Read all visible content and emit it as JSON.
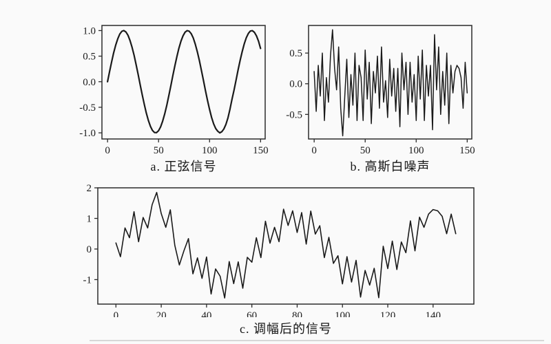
{
  "page": {
    "background": "#fafafa",
    "axis_color": "#2b2b2b",
    "line_color": "#1a1a1a",
    "divider_color": "#d7d7d7"
  },
  "figures": {
    "a": {
      "caption": "a. 正弦信号"
    },
    "b": {
      "caption": "b. 高斯白噪声"
    },
    "c": {
      "caption": "c. 调幅后的信号"
    }
  },
  "chart_data": [
    {
      "id": "a",
      "type": "line",
      "title": "a. 正弦信号",
      "xlabel": "",
      "ylabel": "",
      "grid": false,
      "legend": "none",
      "xlim": [
        -5.5,
        154.5
      ],
      "ylim": [
        -1.12,
        1.1
      ],
      "x_ticks": [
        0,
        50,
        100,
        150
      ],
      "x_tick_labels": [
        "0",
        "50",
        "100",
        "150"
      ],
      "y_ticks": [
        -1.0,
        -0.5,
        0.0,
        0.5,
        1.0
      ],
      "y_tick_labels": [
        "-1.0",
        "-0.5",
        "0.0",
        "0.5",
        "1.0"
      ],
      "axis_color": "#2b2b2b",
      "line_color": "#1a1a1a",
      "line_width": 2.2,
      "x": {
        "start": 0,
        "step": 2,
        "count": 76
      },
      "values": [
        0.0,
        0.199,
        0.389,
        0.565,
        0.717,
        0.841,
        0.932,
        0.985,
        1.0,
        0.974,
        0.909,
        0.808,
        0.675,
        0.516,
        0.335,
        0.141,
        -0.058,
        -0.256,
        -0.443,
        -0.612,
        -0.757,
        -0.872,
        -0.952,
        -0.994,
        -0.996,
        -0.959,
        -0.883,
        -0.773,
        -0.631,
        -0.465,
        -0.279,
        -0.083,
        0.117,
        0.312,
        0.494,
        0.657,
        0.794,
        0.899,
        0.968,
        0.999,
        0.989,
        0.94,
        0.855,
        0.735,
        0.585,
        0.412,
        0.223,
        0.025,
        -0.174,
        -0.366,
        -0.544,
        -0.699,
        -0.825,
        -0.916,
        -0.968,
        -1.0,
        -0.979,
        -0.925,
        -0.835,
        -0.711,
        -0.537,
        -0.34,
        -0.165,
        0.034,
        0.232,
        0.42,
        0.592,
        0.74,
        0.86,
        0.944,
        0.991,
        0.998,
        0.966,
        0.895,
        0.79,
        0.65
      ]
    },
    {
      "id": "b",
      "type": "line",
      "title": "b. 高斯白噪声",
      "xlabel": "",
      "ylabel": "",
      "grid": false,
      "legend": "none",
      "xlim": [
        -5.5,
        154.5
      ],
      "ylim": [
        -0.9,
        0.95
      ],
      "x_ticks": [
        0,
        50,
        100,
        150
      ],
      "x_tick_labels": [
        "0",
        "50",
        "100",
        "150"
      ],
      "y_ticks": [
        -0.5,
        0.0,
        0.5
      ],
      "y_tick_labels": [
        "-0.5",
        "0.0",
        "0.5"
      ],
      "axis_color": "#2b2b2b",
      "line_color": "#1a1a1a",
      "line_width": 1.5,
      "x": {
        "start": 0,
        "step": 2,
        "count": 76
      },
      "values": [
        0.2,
        -0.45,
        0.3,
        -0.2,
        0.5,
        -0.6,
        0.1,
        -0.3,
        0.45,
        0.88,
        0.25,
        -0.1,
        0.6,
        -0.4,
        -0.85,
        -0.2,
        0.4,
        -0.55,
        0.15,
        -0.35,
        0.5,
        -0.6,
        0.3,
        0.1,
        -0.6,
        0.55,
        -0.25,
        0.35,
        -0.65,
        0.2,
        -0.15,
        0.45,
        -0.4,
        0.6,
        -0.3,
        0.05,
        -0.55,
        0.4,
        -0.2,
        0.25,
        -0.45,
        0.25,
        -0.7,
        0.5,
        -0.1,
        0.35,
        -0.5,
        0.35,
        -0.3,
        0.15,
        -0.6,
        0.45,
        -0.25,
        0.55,
        -0.6,
        0.3,
        -0.2,
        0.3,
        -0.75,
        0.8,
        -0.1,
        0.6,
        -0.5,
        0.2,
        -0.35,
        0.5,
        -0.65,
        0.3,
        -0.15,
        0.2,
        0.3,
        0.25,
        0.1,
        -0.4,
        0.35,
        -0.15
      ]
    },
    {
      "id": "c",
      "type": "line",
      "title": "c. 调幅后的信号",
      "xlabel": "",
      "ylabel": "",
      "grid": false,
      "legend": "none",
      "xlim": [
        -8,
        158
      ],
      "ylim": [
        -1.8,
        2.0
      ],
      "x_ticks": [
        0,
        20,
        40,
        60,
        80,
        100,
        120,
        140
      ],
      "x_tick_labels": [
        "0",
        "20",
        "40",
        "60",
        "80",
        "100",
        "120",
        "140"
      ],
      "y_ticks": [
        -1,
        0,
        1,
        2
      ],
      "y_tick_labels": [
        "-1",
        "0",
        "1",
        "2"
      ],
      "axis_color": "#2b2b2b",
      "line_color": "#1a1a1a",
      "line_width": 1.6,
      "x": {
        "start": 0,
        "step": 2,
        "count": 76
      },
      "values": [
        0.2,
        -0.25,
        0.69,
        0.37,
        1.22,
        0.24,
        1.03,
        0.69,
        1.45,
        1.85,
        1.16,
        0.71,
        1.28,
        0.12,
        -0.52,
        -0.06,
        0.34,
        -0.81,
        -0.29,
        -0.96,
        -0.26,
        -1.47,
        -0.65,
        -0.89,
        -1.6,
        -0.41,
        -1.13,
        -0.42,
        -1.28,
        -0.27,
        -0.43,
        0.37,
        -0.28,
        0.91,
        0.19,
        0.71,
        0.24,
        1.3,
        0.77,
        1.25,
        0.54,
        1.19,
        0.16,
        1.24,
        0.49,
        0.76,
        -0.28,
        0.38,
        -0.47,
        -0.22,
        -1.14,
        -0.25,
        -1.08,
        -0.37,
        -1.57,
        -0.7,
        -1.18,
        -0.63,
        -1.59,
        0.09,
        -0.64,
        0.26,
        -0.67,
        0.23,
        -0.12,
        0.92,
        -0.06,
        1.04,
        0.71,
        1.14,
        1.29,
        1.25,
        1.07,
        0.5,
        1.14,
        0.5
      ]
    }
  ]
}
